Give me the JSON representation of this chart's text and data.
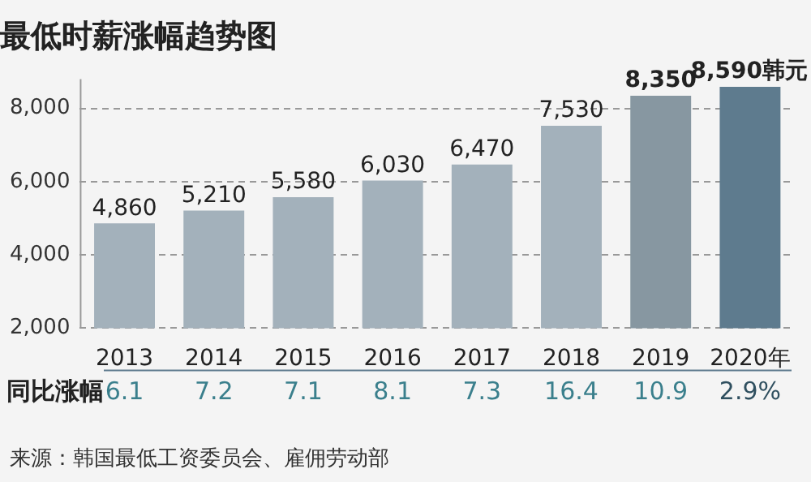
{
  "chart_data": {
    "type": "bar",
    "title": "最低时薪涨幅趋势图",
    "categories": [
      "2013",
      "2014",
      "2015",
      "2016",
      "2017",
      "2018",
      "2019",
      "2020年"
    ],
    "values": [
      4860,
      5210,
      5580,
      6030,
      6470,
      7530,
      8350,
      8590
    ],
    "colors": [
      "#a3b1bb",
      "#a3b1bb",
      "#a3b1bb",
      "#a3b1bb",
      "#a3b1bb",
      "#a3b1bb",
      "#8797a1",
      "#5e7b8e"
    ],
    "value_labels": [
      "4,860",
      "5,210",
      "5,580",
      "6,030",
      "6,470",
      "7,530",
      "8,350",
      "8,590韩元"
    ],
    "ylim": [
      2000,
      8800
    ],
    "yticks": [
      {
        "value": 2000,
        "label": "2,000"
      },
      {
        "value": 4000,
        "label": "4,000"
      },
      {
        "value": 6000,
        "label": "6,000"
      },
      {
        "value": 8000,
        "label": "8,000"
      }
    ],
    "grid": "y",
    "annotations": [
      "同比涨幅",
      "6.1",
      "7.2",
      "7.1",
      "8.1",
      "7.3",
      "16.4",
      "10.9",
      "2.9%",
      "来源：韩国最低工资委员会、雇佣劳动部"
    ]
  }
}
